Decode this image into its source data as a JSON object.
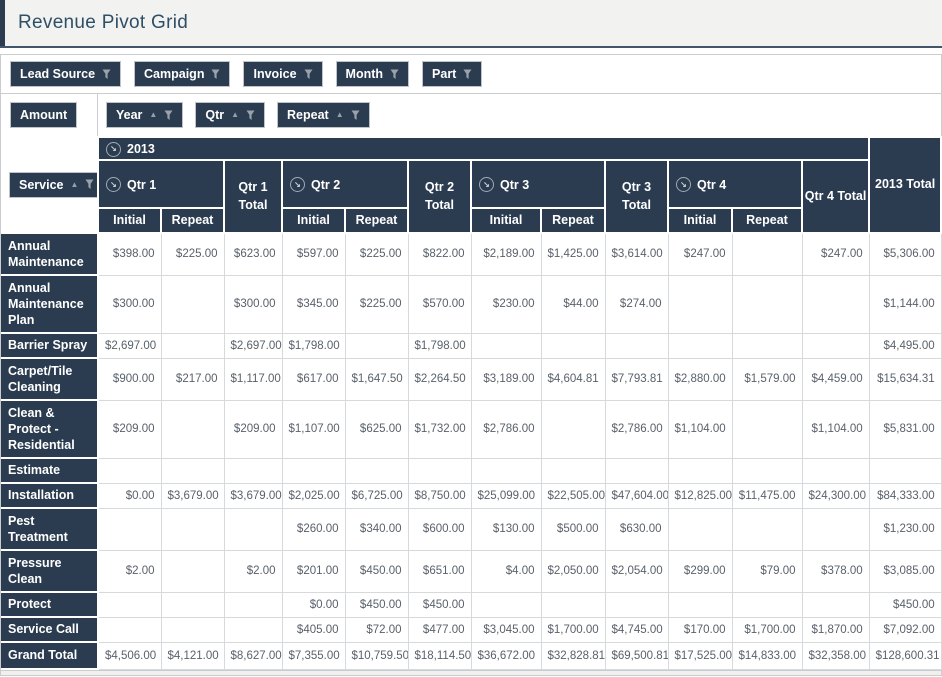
{
  "title": "Revenue Pivot Grid",
  "colors": {
    "header_bg": "#2b3c51",
    "title_text": "#2f4f66"
  },
  "icons": {
    "sort_asc_glyph": "▲",
    "collapse_glyph": "↘",
    "filter": "funnel",
    "sort": "triangle-up",
    "collapse": "arrow-down-right-circle"
  },
  "field_panel": {
    "filter_fields": [
      {
        "label": "Lead Source",
        "filter": true
      },
      {
        "label": "Campaign",
        "filter": true
      },
      {
        "label": "Invoice",
        "filter": true
      },
      {
        "label": "Month",
        "filter": true
      },
      {
        "label": "Part",
        "filter": true
      }
    ],
    "data_fields": [
      {
        "label": "Amount"
      }
    ],
    "column_fields": [
      {
        "label": "Year",
        "sort": "asc",
        "filter": true
      },
      {
        "label": "Qtr",
        "sort": "asc",
        "filter": true
      },
      {
        "label": "Repeat",
        "sort": "asc",
        "filter": true
      }
    ],
    "row_fields": [
      {
        "label": "Service",
        "sort": "asc",
        "filter": true
      }
    ]
  },
  "pivot": {
    "year_group": "2013",
    "year_total": "2013 Total",
    "measures": [
      "Initial",
      "Repeat"
    ],
    "quarters": [
      {
        "label": "Qtr 1",
        "total": "Qtr 1 Total"
      },
      {
        "label": "Qtr 2",
        "total": "Qtr 2 Total"
      },
      {
        "label": "Qtr 3",
        "total": "Qtr 3 Total"
      },
      {
        "label": "Qtr 4",
        "total": "Qtr 4 Total"
      }
    ],
    "rows": [
      {
        "label": "Annual Maintenance",
        "cells": [
          "$398.00",
          "$225.00",
          "$623.00",
          "$597.00",
          "$225.00",
          "$822.00",
          "$2,189.00",
          "$1,425.00",
          "$3,614.00",
          "$247.00",
          "",
          "$247.00",
          "$5,306.00"
        ]
      },
      {
        "label": "Annual Maintenance Plan",
        "cells": [
          "$300.00",
          "",
          "$300.00",
          "$345.00",
          "$225.00",
          "$570.00",
          "$230.00",
          "$44.00",
          "$274.00",
          "",
          "",
          "",
          "$1,144.00"
        ]
      },
      {
        "label": "Barrier Spray",
        "cells": [
          "$2,697.00",
          "",
          "$2,697.00",
          "$1,798.00",
          "",
          "$1,798.00",
          "",
          "",
          "",
          "",
          "",
          "",
          "$4,495.00"
        ]
      },
      {
        "label": "Carpet/Tile Cleaning",
        "cells": [
          "$900.00",
          "$217.00",
          "$1,117.00",
          "$617.00",
          "$1,647.50",
          "$2,264.50",
          "$3,189.00",
          "$4,604.81",
          "$7,793.81",
          "$2,880.00",
          "$1,579.00",
          "$4,459.00",
          "$15,634.31"
        ]
      },
      {
        "label": "Clean & Protect - Residential",
        "cells": [
          "$209.00",
          "",
          "$209.00",
          "$1,107.00",
          "$625.00",
          "$1,732.00",
          "$2,786.00",
          "",
          "$2,786.00",
          "$1,104.00",
          "",
          "$1,104.00",
          "$5,831.00"
        ]
      },
      {
        "label": "Estimate",
        "cells": [
          "",
          "",
          "",
          "",
          "",
          "",
          "",
          "",
          "",
          "",
          "",
          "",
          ""
        ]
      },
      {
        "label": "Installation",
        "cells": [
          "$0.00",
          "$3,679.00",
          "$3,679.00",
          "$2,025.00",
          "$6,725.00",
          "$8,750.00",
          "$25,099.00",
          "$22,505.00",
          "$47,604.00",
          "$12,825.00",
          "$11,475.00",
          "$24,300.00",
          "$84,333.00"
        ]
      },
      {
        "label": "Pest Treatment",
        "cells": [
          "",
          "",
          "",
          "$260.00",
          "$340.00",
          "$600.00",
          "$130.00",
          "$500.00",
          "$630.00",
          "",
          "",
          "",
          "$1,230.00"
        ]
      },
      {
        "label": "Pressure Clean",
        "cells": [
          "$2.00",
          "",
          "$2.00",
          "$201.00",
          "$450.00",
          "$651.00",
          "$4.00",
          "$2,050.00",
          "$2,054.00",
          "$299.00",
          "$79.00",
          "$378.00",
          "$3,085.00"
        ]
      },
      {
        "label": "Protect",
        "cells": [
          "",
          "",
          "",
          "$0.00",
          "$450.00",
          "$450.00",
          "",
          "",
          "",
          "",
          "",
          "",
          "$450.00"
        ]
      },
      {
        "label": "Service Call",
        "cells": [
          "",
          "",
          "",
          "$405.00",
          "$72.00",
          "$477.00",
          "$3,045.00",
          "$1,700.00",
          "$4,745.00",
          "$170.00",
          "$1,700.00",
          "$1,870.00",
          "$7,092.00"
        ]
      },
      {
        "label": "Grand Total",
        "cells": [
          "$4,506.00",
          "$4,121.00",
          "$8,627.00",
          "$7,355.00",
          "$10,759.50",
          "$18,114.50",
          "$36,672.00",
          "$32,828.81",
          "$69,500.81",
          "$17,525.00",
          "$14,833.00",
          "$32,358.00",
          "$128,600.31"
        ]
      }
    ]
  }
}
